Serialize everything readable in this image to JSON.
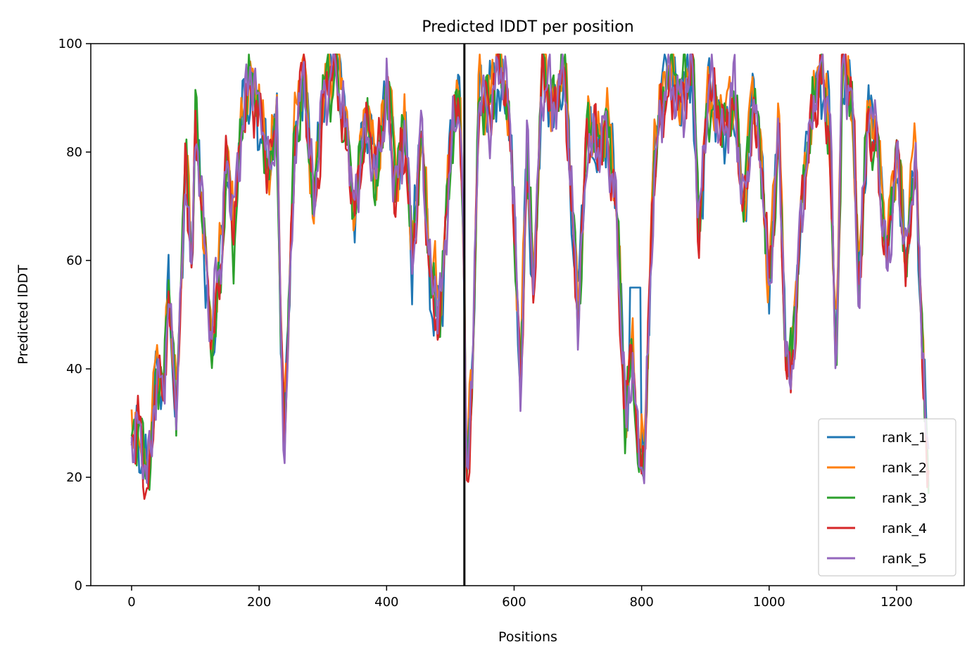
{
  "chart_data": {
    "type": "line",
    "title": "Predicted lDDT per position",
    "xlabel": "Positions",
    "ylabel": "Predicted lDDT",
    "xlim": [
      -64,
      1306
    ],
    "ylim": [
      0,
      100
    ],
    "xticks": [
      0,
      200,
      400,
      600,
      800,
      1000,
      1200
    ],
    "yticks": [
      0,
      20,
      40,
      60,
      80,
      100
    ],
    "grid": false,
    "legend_position": "bottom-right",
    "vline": 522,
    "x_range": [
      0,
      1250
    ],
    "base": [
      [
        0,
        25
      ],
      [
        10,
        30
      ],
      [
        20,
        20
      ],
      [
        30,
        25
      ],
      [
        40,
        40
      ],
      [
        50,
        35
      ],
      [
        58,
        55
      ],
      [
        70,
        30
      ],
      [
        85,
        80
      ],
      [
        95,
        55
      ],
      [
        100,
        85
      ],
      [
        110,
        70
      ],
      [
        125,
        45
      ],
      [
        140,
        60
      ],
      [
        150,
        80
      ],
      [
        160,
        65
      ],
      [
        175,
        88
      ],
      [
        190,
        92
      ],
      [
        205,
        85
      ],
      [
        215,
        75
      ],
      [
        228,
        88
      ],
      [
        235,
        40
      ],
      [
        240,
        28
      ],
      [
        255,
        80
      ],
      [
        270,
        95
      ],
      [
        285,
        70
      ],
      [
        300,
        90
      ],
      [
        320,
        96
      ],
      [
        335,
        85
      ],
      [
        350,
        70
      ],
      [
        365,
        85
      ],
      [
        385,
        75
      ],
      [
        400,
        92
      ],
      [
        415,
        75
      ],
      [
        430,
        85
      ],
      [
        440,
        60
      ],
      [
        455,
        85
      ],
      [
        470,
        55
      ],
      [
        485,
        50
      ],
      [
        500,
        80
      ],
      [
        515,
        92
      ],
      [
        522,
        55
      ],
      [
        525,
        18
      ],
      [
        535,
        40
      ],
      [
        545,
        92
      ],
      [
        560,
        88
      ],
      [
        575,
        96
      ],
      [
        590,
        90
      ],
      [
        600,
        70
      ],
      [
        610,
        35
      ],
      [
        620,
        80
      ],
      [
        630,
        55
      ],
      [
        645,
        96
      ],
      [
        660,
        88
      ],
      [
        680,
        95
      ],
      [
        700,
        50
      ],
      [
        715,
        85
      ],
      [
        730,
        80
      ],
      [
        745,
        85
      ],
      [
        760,
        70
      ],
      [
        775,
        30
      ],
      [
        785,
        45
      ],
      [
        795,
        22
      ],
      [
        805,
        25
      ],
      [
        820,
        80
      ],
      [
        840,
        95
      ],
      [
        860,
        90
      ],
      [
        880,
        95
      ],
      [
        890,
        65
      ],
      [
        905,
        92
      ],
      [
        925,
        85
      ],
      [
        945,
        90
      ],
      [
        960,
        70
      ],
      [
        975,
        90
      ],
      [
        990,
        75
      ],
      [
        1000,
        55
      ],
      [
        1015,
        85
      ],
      [
        1025,
        45
      ],
      [
        1035,
        40
      ],
      [
        1050,
        70
      ],
      [
        1065,
        85
      ],
      [
        1080,
        96
      ],
      [
        1095,
        85
      ],
      [
        1105,
        38
      ],
      [
        1115,
        97
      ],
      [
        1130,
        90
      ],
      [
        1140,
        55
      ],
      [
        1155,
        88
      ],
      [
        1170,
        80
      ],
      [
        1185,
        60
      ],
      [
        1200,
        80
      ],
      [
        1215,
        60
      ],
      [
        1230,
        80
      ],
      [
        1240,
        45
      ],
      [
        1250,
        20
      ]
    ],
    "series": [
      {
        "name": "rank_1",
        "color": "#1f77b4"
      },
      {
        "name": "rank_2",
        "color": "#ff7f0e"
      },
      {
        "name": "rank_3",
        "color": "#2ca02c"
      },
      {
        "name": "rank_4",
        "color": "#d62728"
      },
      {
        "name": "rank_5",
        "color": "#9467bd"
      }
    ]
  }
}
